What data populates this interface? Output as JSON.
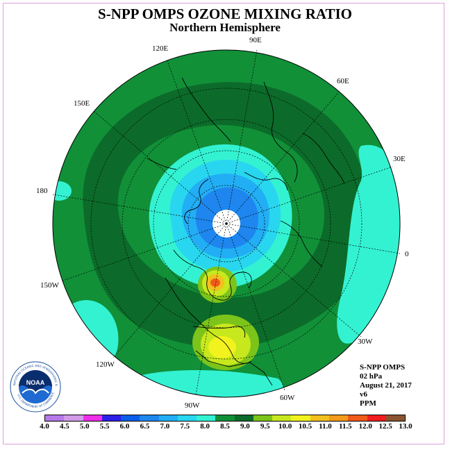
{
  "header": {
    "title": "S-NPP OMPS OZONE MIXING RATIO",
    "subtitle": "Northern Hemisphere"
  },
  "map": {
    "projection": "north polar stereographic",
    "longitude_labels": {
      "e90": "90E",
      "e120": "120E",
      "e150": "150E",
      "e180": "180",
      "w150": "150W",
      "w120": "120W",
      "w90": "90W",
      "w60": "60W",
      "w30": "30W",
      "e0": "0",
      "e30": "30E",
      "e60": "60E"
    },
    "colors": {
      "dark_green": "#0c6b2a",
      "green": "#119038",
      "bright_green": "#0ba33c",
      "aqua": "#33f2d2",
      "cyan": "#29d6ef",
      "sky": "#22aef5",
      "blue": "#1e86ee",
      "yellow_green": "#a8e01a",
      "yellow": "#f2f21e",
      "orange": "#f08a1a",
      "red": "#f01e1e"
    }
  },
  "info": {
    "product": "S-NPP OMPS",
    "level": "02 hPa",
    "date": "August 21, 2017",
    "version": "v6",
    "units": "PPM"
  },
  "logo": {
    "text": "NOAA",
    "ring_text": "NATIONAL OCEANIC AND ATMOSPHERIC ADMINISTRATION",
    "ring_text_bottom": "U.S. DEPARTMENT OF COMMERCE"
  },
  "colorbar": {
    "ticks": [
      "4.0",
      "4.5",
      "5.0",
      "5.5",
      "6.0",
      "6.5",
      "7.0",
      "7.5",
      "8.0",
      "8.5",
      "9.0",
      "9.5",
      "10.0",
      "10.5",
      "11.0",
      "11.5",
      "12.0",
      "12.5",
      "13.0"
    ],
    "colors": [
      "#b67ae8",
      "#d39ae8",
      "#ee2ee8",
      "#2e1ee8",
      "#0a5ee8",
      "#1e86ee",
      "#22aef5",
      "#29d6ef",
      "#33f2d2",
      "#119038",
      "#0c6b2a",
      "#7cc41a",
      "#c8e81e",
      "#f2f21e",
      "#f2c01e",
      "#f29a1a",
      "#f05a1a",
      "#f01e1e",
      "#8a5530"
    ]
  }
}
